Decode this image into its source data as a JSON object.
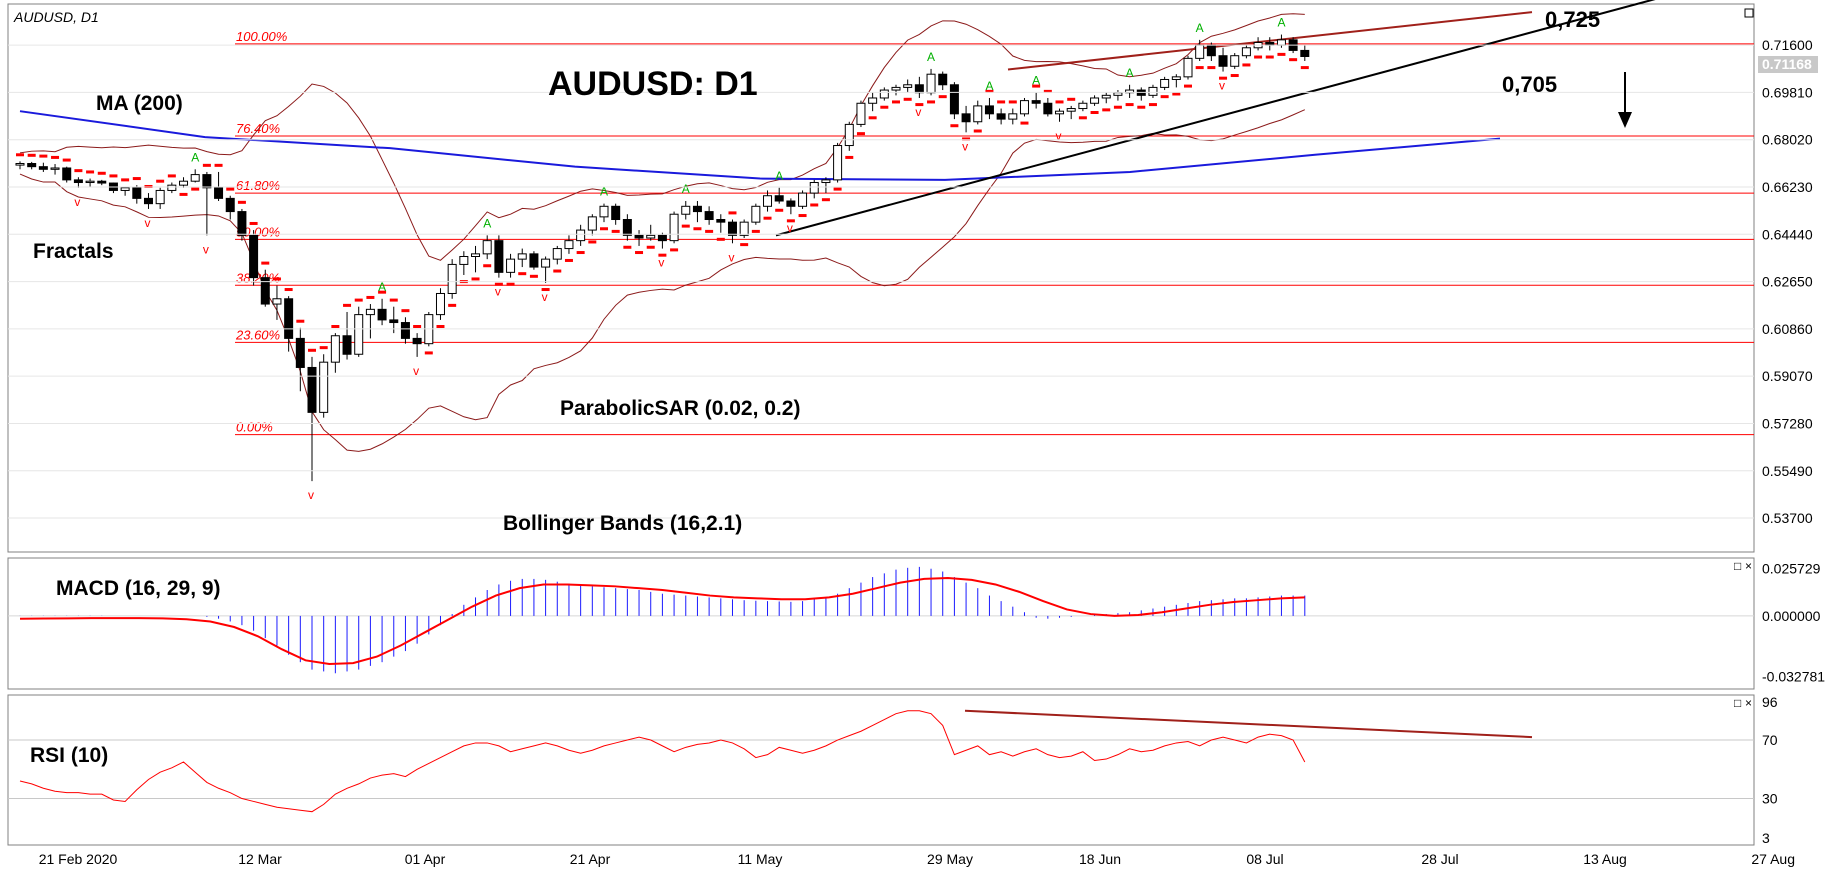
{
  "window": {
    "symbol_label": "AUDUSD, D1",
    "current_price_tag": "0.71168",
    "close_glyph": "×",
    "restore_glyph": "□"
  },
  "annotations": {
    "title": "AUDUSD: D1",
    "ma": "MA (200)",
    "fractals": "Fractals",
    "parabolic": "ParabolicSAR (0.02, 0.2)",
    "bollinger": "Bollinger Bands (16,2.1)",
    "macd": "MACD (16, 29, 9)",
    "rsi": "RSI (10)",
    "resistance_label": "0,725",
    "support_label": "0,705"
  },
  "colors": {
    "candle_up": "#ffffff",
    "candle_down": "#000000",
    "ma200": "#1a1adc",
    "bollinger": "#8b1a1a",
    "sar": "#ff0000",
    "fib": "#ff0000",
    "trendline": "#000000",
    "resistance": "#a0201a",
    "macd_hist": "#1a1aff",
    "macd_signal": "#ff0000",
    "rsi": "#ff0000",
    "fractal_up": "#00b000",
    "fractal_down": "#ff0000",
    "grid": "#c0c0c0"
  },
  "chart_data": [
    {
      "type": "candlestick",
      "title": "AUDUSD: D1",
      "timeframe": "D1",
      "y_ticks": [
        "0.71600",
        "0.69810",
        "0.68020",
        "0.66230",
        "0.64440",
        "0.62650",
        "0.60860",
        "0.59070",
        "0.57280",
        "0.55490",
        "0.53700"
      ],
      "ylim": [
        0.5268,
        0.7293
      ],
      "x_ticks": [
        "21 Feb 2020",
        "12 Mar",
        "01 Apr",
        "21 Apr",
        "11 May",
        "29 May",
        "18 Jun",
        "08 Jul",
        "28 Jul",
        "13 Aug",
        "27 Aug"
      ],
      "fibonacci": [
        {
          "label": "100.00%",
          "value": 0.7165
        },
        {
          "label": "76.40%",
          "value": 0.6816
        },
        {
          "label": "61.80%",
          "value": 0.66
        },
        {
          "label": "50.00%",
          "value": 0.6425
        },
        {
          "label": "38.20%",
          "value": 0.6251
        },
        {
          "label": "23.60%",
          "value": 0.6035
        },
        {
          "label": "0.00%",
          "value": 0.5686
        }
      ],
      "ohlc": [
        [
          0.6706,
          0.672,
          0.669,
          0.6712
        ],
        [
          0.6712,
          0.6718,
          0.669,
          0.67
        ],
        [
          0.67,
          0.6715,
          0.668,
          0.669
        ],
        [
          0.669,
          0.671,
          0.667,
          0.6695
        ],
        [
          0.6695,
          0.67,
          0.664,
          0.665
        ],
        [
          0.665,
          0.666,
          0.662,
          0.664
        ],
        [
          0.664,
          0.6655,
          0.6625,
          0.6645
        ],
        [
          0.6645,
          0.665,
          0.663,
          0.6638
        ],
        [
          0.6638,
          0.664,
          0.66,
          0.661
        ],
        [
          0.661,
          0.6625,
          0.659,
          0.662
        ],
        [
          0.662,
          0.663,
          0.656,
          0.658
        ],
        [
          0.658,
          0.66,
          0.654,
          0.656
        ],
        [
          0.656,
          0.662,
          0.654,
          0.661
        ],
        [
          0.661,
          0.664,
          0.66,
          0.663
        ],
        [
          0.663,
          0.666,
          0.662,
          0.6645
        ],
        [
          0.6645,
          0.669,
          0.664,
          0.667
        ],
        [
          0.667,
          0.668,
          0.644,
          0.662
        ],
        [
          0.662,
          0.668,
          0.657,
          0.658
        ],
        [
          0.658,
          0.659,
          0.65,
          0.653
        ],
        [
          0.653,
          0.654,
          0.642,
          0.644
        ],
        [
          0.644,
          0.646,
          0.625,
          0.628
        ],
        [
          0.628,
          0.631,
          0.617,
          0.618
        ],
        [
          0.618,
          0.625,
          0.612,
          0.62
        ],
        [
          0.62,
          0.621,
          0.6,
          0.605
        ],
        [
          0.605,
          0.609,
          0.585,
          0.594
        ],
        [
          0.594,
          0.598,
          0.551,
          0.577
        ],
        [
          0.577,
          0.599,
          0.575,
          0.596
        ],
        [
          0.596,
          0.607,
          0.592,
          0.606
        ],
        [
          0.606,
          0.615,
          0.597,
          0.599
        ],
        [
          0.599,
          0.617,
          0.598,
          0.614
        ],
        [
          0.614,
          0.618,
          0.605,
          0.616
        ],
        [
          0.616,
          0.62,
          0.61,
          0.612
        ],
        [
          0.612,
          0.617,
          0.607,
          0.611
        ],
        [
          0.611,
          0.613,
          0.603,
          0.605
        ],
        [
          0.605,
          0.607,
          0.598,
          0.603
        ],
        [
          0.603,
          0.615,
          0.602,
          0.614
        ],
        [
          0.614,
          0.624,
          0.612,
          0.622
        ],
        [
          0.622,
          0.635,
          0.62,
          0.633
        ],
        [
          0.633,
          0.638,
          0.629,
          0.636
        ],
        [
          0.636,
          0.64,
          0.63,
          0.637
        ],
        [
          0.637,
          0.644,
          0.635,
          0.642
        ],
        [
          0.642,
          0.644,
          0.628,
          0.63
        ],
        [
          0.63,
          0.637,
          0.628,
          0.635
        ],
        [
          0.635,
          0.639,
          0.632,
          0.637
        ],
        [
          0.637,
          0.638,
          0.631,
          0.632
        ],
        [
          0.632,
          0.636,
          0.626,
          0.635
        ],
        [
          0.635,
          0.64,
          0.633,
          0.639
        ],
        [
          0.639,
          0.644,
          0.637,
          0.642
        ],
        [
          0.642,
          0.648,
          0.64,
          0.646
        ],
        [
          0.646,
          0.652,
          0.644,
          0.651
        ],
        [
          0.651,
          0.656,
          0.649,
          0.655
        ],
        [
          0.655,
          0.656,
          0.648,
          0.65
        ],
        [
          0.65,
          0.652,
          0.642,
          0.644
        ],
        [
          0.644,
          0.646,
          0.64,
          0.643
        ],
        [
          0.643,
          0.648,
          0.642,
          0.644
        ],
        [
          0.644,
          0.645,
          0.639,
          0.642
        ],
        [
          0.642,
          0.653,
          0.641,
          0.652
        ],
        [
          0.652,
          0.657,
          0.65,
          0.655
        ],
        [
          0.655,
          0.657,
          0.649,
          0.653
        ],
        [
          0.653,
          0.655,
          0.648,
          0.65
        ],
        [
          0.65,
          0.652,
          0.645,
          0.649
        ],
        [
          0.649,
          0.65,
          0.641,
          0.644
        ],
        [
          0.644,
          0.65,
          0.643,
          0.649
        ],
        [
          0.649,
          0.656,
          0.648,
          0.655
        ],
        [
          0.655,
          0.661,
          0.653,
          0.659
        ],
        [
          0.659,
          0.662,
          0.656,
          0.657
        ],
        [
          0.657,
          0.658,
          0.652,
          0.655
        ],
        [
          0.655,
          0.661,
          0.654,
          0.66
        ],
        [
          0.66,
          0.665,
          0.658,
          0.664
        ],
        [
          0.664,
          0.666,
          0.66,
          0.665
        ],
        [
          0.665,
          0.679,
          0.664,
          0.678
        ],
        [
          0.678,
          0.687,
          0.676,
          0.686
        ],
        [
          0.686,
          0.695,
          0.685,
          0.694
        ],
        [
          0.694,
          0.698,
          0.691,
          0.696
        ],
        [
          0.696,
          0.7,
          0.695,
          0.699
        ],
        [
          0.699,
          0.701,
          0.697,
          0.7
        ],
        [
          0.7,
          0.703,
          0.698,
          0.701
        ],
        [
          0.701,
          0.704,
          0.696,
          0.698
        ],
        [
          0.698,
          0.707,
          0.697,
          0.705
        ],
        [
          0.705,
          0.706,
          0.699,
          0.701
        ],
        [
          0.701,
          0.702,
          0.688,
          0.69
        ],
        [
          0.69,
          0.693,
          0.683,
          0.687
        ],
        [
          0.687,
          0.695,
          0.686,
          0.693
        ],
        [
          0.693,
          0.696,
          0.688,
          0.69
        ],
        [
          0.69,
          0.692,
          0.686,
          0.688
        ],
        [
          0.688,
          0.692,
          0.686,
          0.69
        ],
        [
          0.69,
          0.696,
          0.689,
          0.695
        ],
        [
          0.695,
          0.698,
          0.692,
          0.694
        ],
        [
          0.694,
          0.696,
          0.689,
          0.69
        ],
        [
          0.69,
          0.692,
          0.687,
          0.691
        ],
        [
          0.691,
          0.693,
          0.688,
          0.692
        ],
        [
          0.692,
          0.695,
          0.691,
          0.694
        ],
        [
          0.694,
          0.697,
          0.693,
          0.696
        ],
        [
          0.696,
          0.698,
          0.694,
          0.697
        ],
        [
          0.697,
          0.699,
          0.695,
          0.698
        ],
        [
          0.698,
          0.701,
          0.696,
          0.699
        ],
        [
          0.699,
          0.7,
          0.695,
          0.697
        ],
        [
          0.697,
          0.701,
          0.696,
          0.7
        ],
        [
          0.7,
          0.704,
          0.699,
          0.703
        ],
        [
          0.703,
          0.705,
          0.7,
          0.704
        ],
        [
          0.704,
          0.712,
          0.703,
          0.711
        ],
        [
          0.711,
          0.718,
          0.71,
          0.716
        ],
        [
          0.716,
          0.717,
          0.71,
          0.712
        ],
        [
          0.712,
          0.715,
          0.706,
          0.708
        ],
        [
          0.708,
          0.713,
          0.707,
          0.712
        ],
        [
          0.712,
          0.716,
          0.711,
          0.715
        ],
        [
          0.715,
          0.719,
          0.714,
          0.717
        ],
        [
          0.717,
          0.719,
          0.714,
          0.716
        ],
        [
          0.716,
          0.72,
          0.715,
          0.718
        ],
        [
          0.718,
          0.719,
          0.713,
          0.714
        ],
        [
          0.714,
          0.716,
          0.71,
          0.7117
        ]
      ],
      "sma200": [
        0.691,
        0.6812,
        0.677,
        0.67,
        0.6655,
        0.665,
        0.668,
        0.6745,
        0.6806
      ],
      "trend_support": [
        0.644,
        0.738
      ],
      "resistance": [
        0.7068,
        0.7285
      ],
      "arrow": "down"
    },
    {
      "type": "bar",
      "title": "MACD (16, 29, 9)",
      "y_ticks": [
        "0.025729",
        "0.000000",
        "-0.032781"
      ],
      "ylim": [
        -0.0368,
        0.0286
      ],
      "histogram": [
        0.0001,
        0.0001,
        0.0001,
        0.0001,
        0.0001,
        0.0001,
        0.0001,
        0.0001,
        0.0,
        0.0,
        0.0,
        0.0,
        0.0,
        0.0,
        0.0,
        0.0,
        -0.0005,
        -0.0015,
        -0.003,
        -0.005,
        -0.008,
        -0.012,
        -0.016,
        -0.021,
        -0.025,
        -0.029,
        -0.03,
        -0.031,
        -0.03,
        -0.029,
        -0.027,
        -0.025,
        -0.022,
        -0.019,
        -0.015,
        -0.01,
        -0.005,
        0.001,
        0.006,
        0.01,
        0.014,
        0.017,
        0.019,
        0.02,
        0.02,
        0.0195,
        0.0185,
        0.0175,
        0.0165,
        0.016,
        0.0155,
        0.015,
        0.0145,
        0.014,
        0.013,
        0.012,
        0.0115,
        0.011,
        0.0105,
        0.01,
        0.0095,
        0.009,
        0.0085,
        0.0082,
        0.008,
        0.0078,
        0.0076,
        0.008,
        0.009,
        0.01,
        0.012,
        0.015,
        0.018,
        0.021,
        0.023,
        0.025,
        0.026,
        0.0265,
        0.0255,
        0.024,
        0.021,
        0.018,
        0.015,
        0.011,
        0.008,
        0.005,
        0.002,
        -0.001,
        -0.0015,
        -0.001,
        -0.0005,
        0.0,
        0.0005,
        0.001,
        0.0015,
        0.002,
        0.003,
        0.004,
        0.005,
        0.006,
        0.007,
        0.008,
        0.0085,
        0.009,
        0.0095,
        0.0095,
        0.01,
        0.0105,
        0.011,
        0.011,
        0.011
      ],
      "signal": [
        -0.0015,
        -0.0014,
        -0.0013,
        -0.0012,
        -0.0012,
        -0.0012,
        -0.0013,
        -0.0018,
        -0.003,
        -0.006,
        -0.011,
        -0.018,
        -0.024,
        -0.026,
        -0.0255,
        -0.022,
        -0.016,
        -0.009,
        -0.002,
        0.005,
        0.011,
        0.015,
        0.017,
        0.017,
        0.0165,
        0.016,
        0.015,
        0.014,
        0.0125,
        0.011,
        0.01,
        0.0095,
        0.009,
        0.009,
        0.01,
        0.012,
        0.015,
        0.018,
        0.02,
        0.0205,
        0.0195,
        0.017,
        0.013,
        0.008,
        0.0035,
        0.001,
        0.0,
        0.0005,
        0.002,
        0.004,
        0.006,
        0.0075,
        0.0085,
        0.0095,
        0.01
      ]
    },
    {
      "type": "line",
      "title": "RSI (10)",
      "y_ticks": [
        "96",
        "70",
        "30",
        "3"
      ],
      "ylim": [
        3,
        96
      ],
      "values": [
        42,
        40,
        37,
        35,
        34,
        34,
        33,
        33,
        29,
        28,
        36,
        43,
        48,
        51,
        55,
        48,
        41,
        37,
        34,
        30,
        28,
        26,
        24,
        23,
        22,
        21,
        26,
        33,
        37,
        40,
        44,
        46,
        47,
        45,
        50,
        54,
        58,
        62,
        66,
        68,
        68,
        66,
        62,
        64,
        66,
        68,
        66,
        63,
        61,
        63,
        66,
        68,
        70,
        72,
        70,
        66,
        62,
        65,
        67,
        68,
        70,
        68,
        64,
        58,
        60,
        65,
        63,
        61,
        63,
        66,
        70,
        73,
        76,
        80,
        84,
        88,
        90,
        90,
        88,
        80,
        60,
        63,
        66,
        60,
        62,
        59,
        62,
        64,
        60,
        58,
        59,
        62,
        56,
        57,
        60,
        64,
        62,
        63,
        66,
        68,
        69,
        66,
        70,
        72,
        70,
        68,
        72,
        74,
        73,
        70,
        55
      ],
      "divergence_upper": [
        90,
        72
      ]
    }
  ]
}
